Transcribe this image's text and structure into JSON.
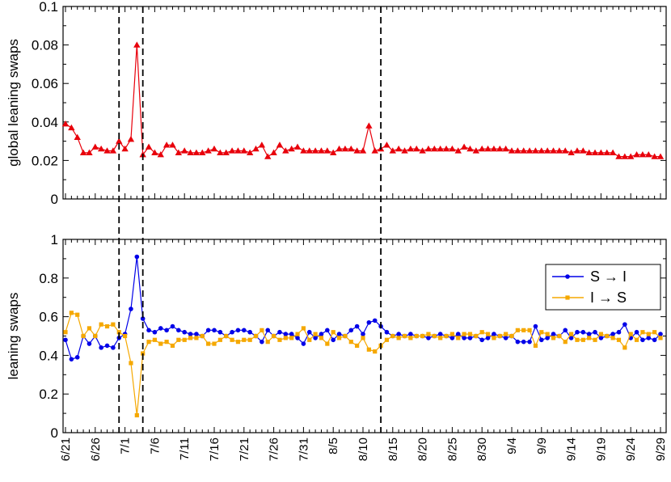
{
  "chart_data": [
    {
      "type": "line",
      "ylabel": "global leaning swaps",
      "ylim": [
        0,
        0.1
      ],
      "yticks": [
        "0",
        "0.02",
        "0.04",
        "0.06",
        "0.08",
        "0.1"
      ],
      "grid": false,
      "series": [
        {
          "color": "#e8000b",
          "marker": "triangle",
          "x": [
            "6/21",
            "6/22",
            "6/23",
            "6/24",
            "6/25",
            "6/26",
            "6/27",
            "6/28",
            "6/29",
            "6/30",
            "7/1",
            "7/2",
            "7/3",
            "7/4",
            "7/5",
            "7/6",
            "7/7",
            "7/8",
            "7/9",
            "7/10",
            "7/11",
            "7/12",
            "7/13",
            "7/14",
            "7/15",
            "7/16",
            "7/17",
            "7/18",
            "7/19",
            "7/20",
            "7/21",
            "7/22",
            "7/23",
            "7/24",
            "7/25",
            "7/26",
            "7/27",
            "7/28",
            "7/29",
            "7/30",
            "7/31",
            "8/1",
            "8/2",
            "8/3",
            "8/4",
            "8/5",
            "8/6",
            "8/7",
            "8/8",
            "8/9",
            "8/10",
            "8/11",
            "8/12",
            "8/13",
            "8/14",
            "8/15",
            "8/16",
            "8/17",
            "8/18",
            "8/19",
            "8/20",
            "8/21",
            "8/22",
            "8/23",
            "8/24",
            "8/25",
            "8/26",
            "8/27",
            "8/28",
            "8/29",
            "8/30",
            "8/31",
            "9/1",
            "9/2",
            "9/3",
            "9/4",
            "9/5",
            "9/6",
            "9/7",
            "9/8",
            "9/9",
            "9/10",
            "9/11",
            "9/12",
            "9/13",
            "9/14",
            "9/15",
            "9/16",
            "9/17",
            "9/18",
            "9/19",
            "9/20",
            "9/21",
            "9/22",
            "9/23",
            "9/24",
            "9/25",
            "9/26",
            "9/27",
            "9/28",
            "9/29"
          ],
          "values": [
            0.039,
            0.037,
            0.032,
            0.024,
            0.024,
            0.027,
            0.026,
            0.025,
            0.025,
            0.03,
            0.026,
            0.031,
            0.08,
            0.023,
            0.027,
            0.024,
            0.023,
            0.028,
            0.028,
            0.024,
            0.025,
            0.024,
            0.024,
            0.024,
            0.025,
            0.026,
            0.024,
            0.024,
            0.025,
            0.025,
            0.025,
            0.024,
            0.026,
            0.028,
            0.022,
            0.024,
            0.028,
            0.025,
            0.026,
            0.027,
            0.025,
            0.025,
            0.025,
            0.025,
            0.025,
            0.024,
            0.026,
            0.026,
            0.026,
            0.025,
            0.025,
            0.038,
            0.025,
            0.026,
            0.028,
            0.025,
            0.026,
            0.025,
            0.026,
            0.026,
            0.025,
            0.026,
            0.026,
            0.026,
            0.026,
            0.026,
            0.025,
            0.027,
            0.026,
            0.025,
            0.026,
            0.026,
            0.026,
            0.026,
            0.026,
            0.025,
            0.025,
            0.025,
            0.025,
            0.025,
            0.025,
            0.025,
            0.025,
            0.025,
            0.025,
            0.024,
            0.025,
            0.025,
            0.024,
            0.024,
            0.024,
            0.024,
            0.024,
            0.022,
            0.022,
            0.022,
            0.023,
            0.023,
            0.023,
            0.022,
            0.022
          ]
        }
      ],
      "vlines": [
        "6/30",
        "7/4",
        "8/13"
      ]
    },
    {
      "type": "line",
      "ylabel": "leaning swaps",
      "ylim": [
        0,
        1
      ],
      "yticks": [
        "0",
        "0.2",
        "0.4",
        "0.6",
        "0.8",
        "1"
      ],
      "grid": false,
      "legend_position": "top-right",
      "series": [
        {
          "name": "S → I",
          "color": "#0000e8",
          "marker": "circle",
          "values": [
            0.48,
            0.38,
            0.39,
            0.5,
            0.46,
            0.5,
            0.44,
            0.45,
            0.44,
            0.49,
            0.51,
            0.64,
            0.91,
            0.59,
            0.53,
            0.52,
            0.54,
            0.53,
            0.55,
            0.53,
            0.52,
            0.51,
            0.51,
            0.5,
            0.53,
            0.53,
            0.52,
            0.5,
            0.52,
            0.53,
            0.53,
            0.52,
            0.5,
            0.47,
            0.53,
            0.5,
            0.52,
            0.51,
            0.51,
            0.49,
            0.46,
            0.52,
            0.49,
            0.51,
            0.53,
            0.48,
            0.51,
            0.5,
            0.53,
            0.55,
            0.51,
            0.57,
            0.58,
            0.55,
            0.52,
            0.5,
            0.51,
            0.5,
            0.51,
            0.5,
            0.5,
            0.49,
            0.5,
            0.51,
            0.5,
            0.49,
            0.51,
            0.49,
            0.49,
            0.5,
            0.48,
            0.49,
            0.51,
            0.5,
            0.49,
            0.5,
            0.47,
            0.47,
            0.47,
            0.55,
            0.48,
            0.49,
            0.51,
            0.5,
            0.53,
            0.49,
            0.52,
            0.52,
            0.51,
            0.52,
            0.49,
            0.5,
            0.51,
            0.52,
            0.56,
            0.49,
            0.52,
            0.48,
            0.49,
            0.48,
            0.51
          ]
        },
        {
          "name": "I → S",
          "color": "#f5a800",
          "marker": "square",
          "values": [
            0.52,
            0.62,
            0.61,
            0.5,
            0.54,
            0.5,
            0.56,
            0.55,
            0.56,
            0.52,
            0.5,
            0.36,
            0.09,
            0.41,
            0.47,
            0.48,
            0.46,
            0.47,
            0.45,
            0.48,
            0.48,
            0.49,
            0.49,
            0.5,
            0.46,
            0.46,
            0.48,
            0.5,
            0.48,
            0.47,
            0.48,
            0.48,
            0.5,
            0.53,
            0.47,
            0.5,
            0.48,
            0.49,
            0.49,
            0.51,
            0.54,
            0.48,
            0.51,
            0.49,
            0.46,
            0.52,
            0.49,
            0.5,
            0.47,
            0.45,
            0.49,
            0.43,
            0.42,
            0.45,
            0.48,
            0.5,
            0.49,
            0.5,
            0.49,
            0.5,
            0.5,
            0.51,
            0.5,
            0.49,
            0.5,
            0.51,
            0.49,
            0.51,
            0.51,
            0.5,
            0.52,
            0.51,
            0.49,
            0.5,
            0.51,
            0.5,
            0.53,
            0.53,
            0.53,
            0.45,
            0.52,
            0.51,
            0.49,
            0.5,
            0.47,
            0.51,
            0.48,
            0.48,
            0.49,
            0.48,
            0.51,
            0.5,
            0.49,
            0.48,
            0.44,
            0.51,
            0.48,
            0.52,
            0.51,
            0.52,
            0.49
          ]
        }
      ],
      "vlines": [
        "6/30",
        "7/4",
        "8/13"
      ]
    }
  ],
  "x_ticks": [
    "6/21",
    "6/26",
    "7/1",
    "7/6",
    "7/11",
    "7/16",
    "7/21",
    "7/26",
    "7/31",
    "8/5",
    "8/10",
    "8/15",
    "8/20",
    "8/25",
    "8/30",
    "9/4",
    "9/9",
    "9/14",
    "9/19",
    "9/24",
    "9/29"
  ]
}
